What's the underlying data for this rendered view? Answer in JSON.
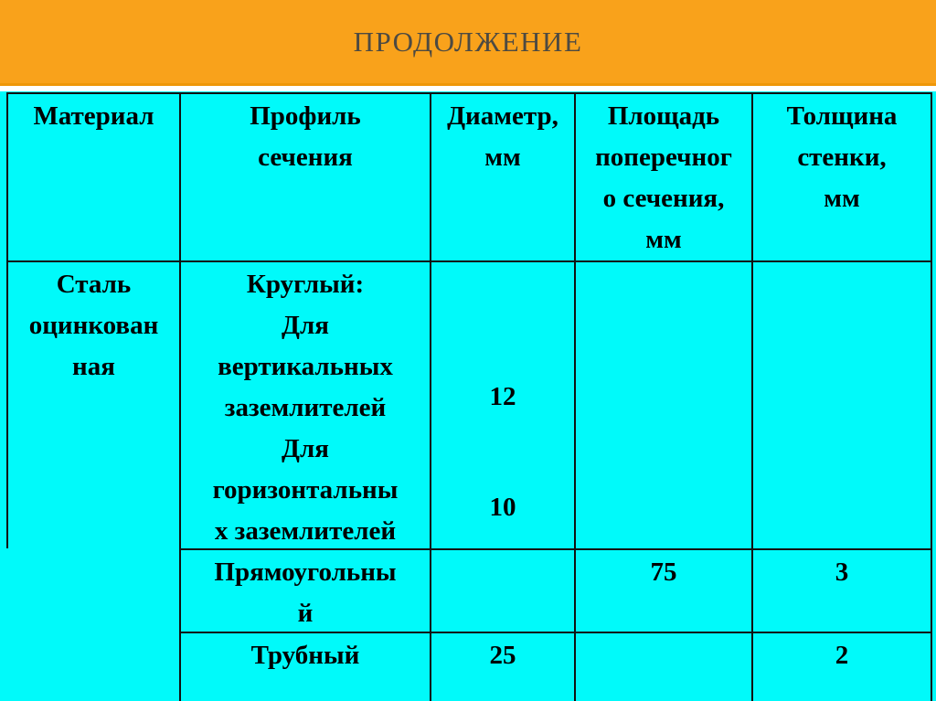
{
  "slide": {
    "title": "ПРОДОЛЖЕНИЕ",
    "colors": {
      "header_bg": "#f9a21b",
      "title_text": "#4d4a42",
      "page_bg": "#00fafa",
      "border": "#101010",
      "cell_text": "#000000"
    }
  },
  "table": {
    "headers": {
      "material": [
        "Материал"
      ],
      "profile": [
        "Профиль",
        "сечения"
      ],
      "diameter": [
        "Диаметр,",
        "мм"
      ],
      "area": [
        "Площадь",
        "поперечног",
        "о сечения,",
        "мм"
      ],
      "thickness": [
        "Толщина",
        "стенки,",
        "мм"
      ]
    },
    "body": {
      "material": [
        "Сталь",
        "оцинкован",
        "ная"
      ],
      "round": {
        "profile": [
          "Круглый:",
          "Для",
          "вертикальных",
          "заземлителей",
          "Для",
          "горизонтальны",
          "х заземлителей"
        ],
        "diameter_vertical": "12",
        "diameter_horizontal": "10",
        "area": "",
        "thickness": ""
      },
      "rectangular": {
        "profile": [
          "Прямоугольны",
          "й"
        ],
        "diameter": "",
        "area": "75",
        "thickness": "3"
      },
      "tubular": {
        "profile": [
          "Трубный"
        ],
        "diameter": "25",
        "area": "",
        "thickness": "2"
      }
    }
  }
}
